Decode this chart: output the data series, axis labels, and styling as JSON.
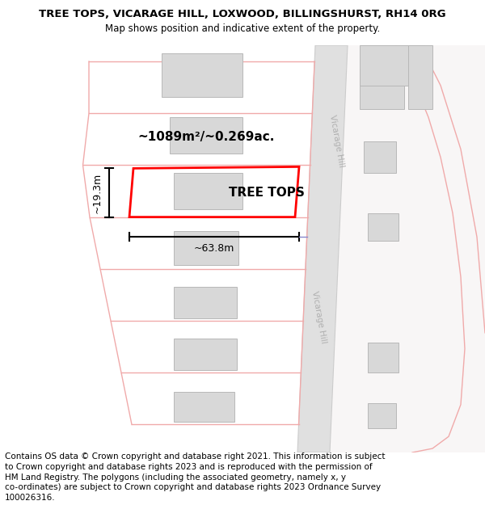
{
  "title_line1": "TREE TOPS, VICARAGE HILL, LOXWOOD, BILLINGSHURST, RH14 0RG",
  "title_line2": "Map shows position and indicative extent of the property.",
  "property_name": "TREE TOPS",
  "area_text": "~1089m²/~0.269ac.",
  "width_text": "~63.8m",
  "height_text": "~19.3m",
  "footer_line1": "Contains OS data © Crown copyright and database right 2021. This information is subject",
  "footer_line2": "to Crown copyright and database rights 2023 and is reproduced with the permission of",
  "footer_line3": "HM Land Registry. The polygons (including the associated geometry, namely x, y",
  "footer_line4": "co-ordinates) are subject to Crown copyright and database rights 2023 Ordnance Survey",
  "footer_line5": "100026316.",
  "bg_color": "#ffffff",
  "map_bg": "#ffffff",
  "plot_line_color": "#f0aaaa",
  "plot_outline_color": "#ff0000",
  "building_fill": "#d8d8d8",
  "building_edge": "#b8b8b8",
  "road_fill": "#e0e0e0",
  "road_edge": "#cccccc",
  "road_label_color": "#b0b0b0",
  "title_fontsize": 9.5,
  "subtitle_fontsize": 8.5,
  "footer_fontsize": 7.5,
  "label_fontsize": 11,
  "dim_fontsize": 9
}
